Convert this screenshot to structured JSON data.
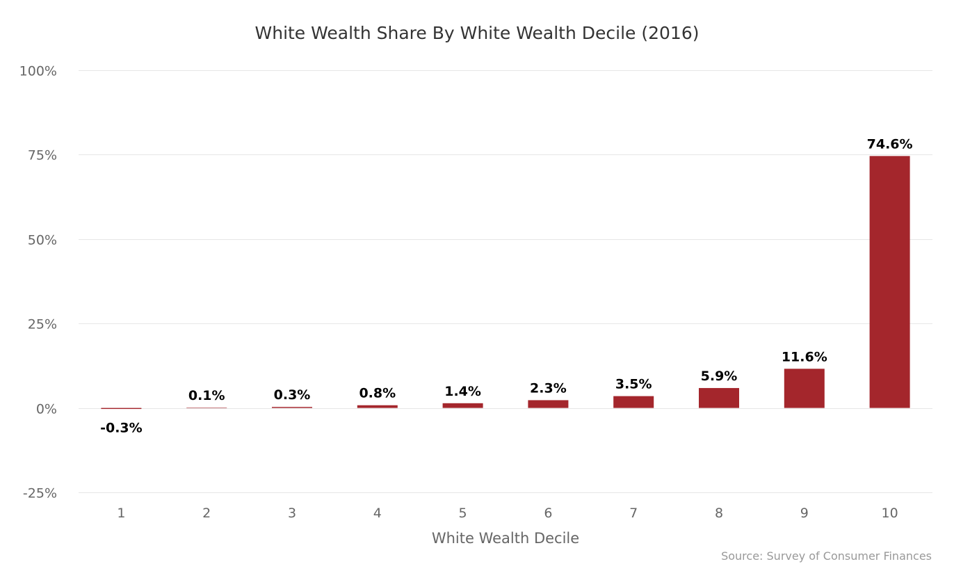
{
  "chart_data": {
    "type": "bar",
    "title": "White Wealth Share By White Wealth Decile (2016)",
    "xlabel": "White Wealth Decile",
    "ylabel": "",
    "categories": [
      "1",
      "2",
      "3",
      "4",
      "5",
      "6",
      "7",
      "8",
      "9",
      "10"
    ],
    "values": [
      -0.3,
      0.1,
      0.3,
      0.8,
      1.4,
      2.3,
      3.5,
      5.9,
      11.6,
      74.6
    ],
    "data_labels": [
      "-0.3%",
      "0.1%",
      "0.3%",
      "0.8%",
      "1.4%",
      "2.3%",
      "3.5%",
      "5.9%",
      "11.6%",
      "74.6%"
    ],
    "ylim": [
      -25,
      100
    ],
    "yticks": [
      -25,
      0,
      25,
      50,
      75,
      100
    ],
    "ytick_labels": [
      "-25%",
      "0%",
      "25%",
      "50%",
      "75%",
      "100%"
    ],
    "bar_color": "#a4262c",
    "grid": true,
    "legend": "none",
    "source": "Source: Survey of Consumer Finances"
  }
}
